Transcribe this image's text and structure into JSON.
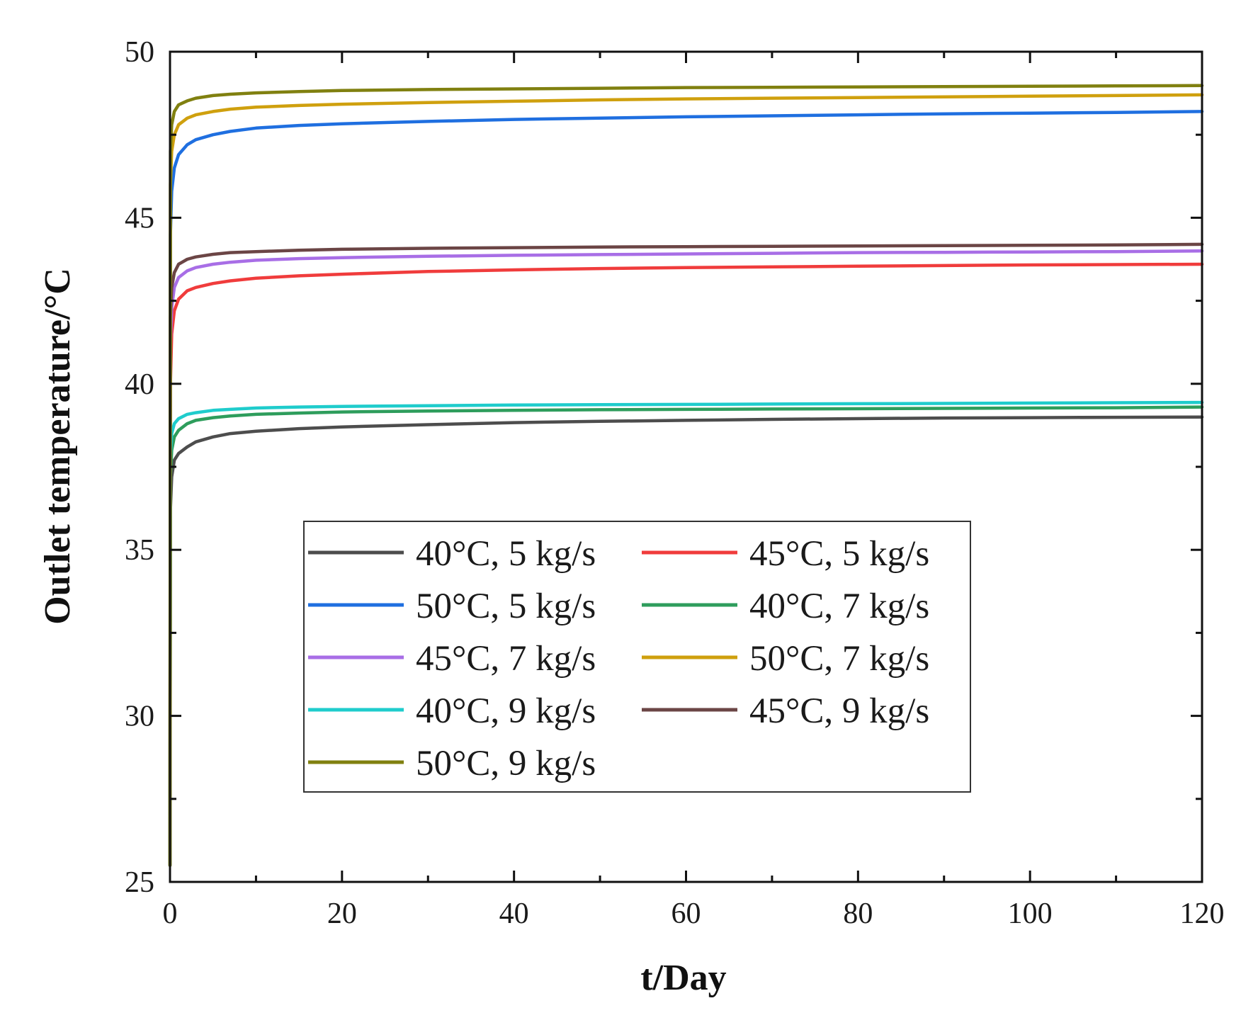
{
  "chart_data": {
    "type": "line",
    "xlabel": "t/Day",
    "ylabel": "Outlet temperature/°C",
    "xlim": [
      0,
      120
    ],
    "ylim": [
      25,
      50
    ],
    "xticks": [
      0,
      20,
      40,
      60,
      80,
      100,
      120
    ],
    "yticks": [
      25,
      30,
      35,
      40,
      45,
      50
    ],
    "grid": false,
    "legend_position": "center-left, inside plot",
    "x": [
      0,
      0.05,
      0.2,
      0.5,
      1,
      2,
      3,
      5,
      7,
      10,
      15,
      20,
      30,
      40,
      50,
      60,
      70,
      80,
      90,
      100,
      110,
      120
    ],
    "series": [
      {
        "name": "40°C, 5 kg/s",
        "color": "#4d4d4d",
        "start": 25.5,
        "values": [
          25.5,
          36.2,
          37.2,
          37.7,
          37.9,
          38.1,
          38.25,
          38.4,
          38.5,
          38.57,
          38.65,
          38.7,
          38.77,
          38.83,
          38.87,
          38.9,
          38.93,
          38.95,
          38.97,
          38.98,
          38.99,
          39.0
        ]
      },
      {
        "name": "45°C, 5 kg/s",
        "color": "#f03c3c",
        "start": 25.5,
        "values": [
          25.5,
          40.0,
          41.5,
          42.2,
          42.55,
          42.8,
          42.9,
          43.02,
          43.1,
          43.18,
          43.25,
          43.3,
          43.38,
          43.43,
          43.47,
          43.5,
          43.52,
          43.54,
          43.56,
          43.58,
          43.59,
          43.6
        ]
      },
      {
        "name": "50°C, 5 kg/s",
        "color": "#1f6fe0",
        "start": 25.5,
        "values": [
          25.5,
          44.5,
          45.8,
          46.5,
          46.9,
          47.2,
          47.35,
          47.5,
          47.6,
          47.7,
          47.78,
          47.83,
          47.9,
          47.96,
          48.0,
          48.04,
          48.07,
          48.1,
          48.13,
          48.15,
          48.17,
          48.2
        ]
      },
      {
        "name": "40°C, 7 kg/s",
        "color": "#2e9d5c",
        "start": 25.5,
        "values": [
          25.5,
          37.2,
          38.0,
          38.4,
          38.6,
          38.8,
          38.9,
          38.98,
          39.03,
          39.08,
          39.12,
          39.15,
          39.18,
          39.2,
          39.22,
          39.23,
          39.24,
          39.25,
          39.26,
          39.27,
          39.28,
          39.3
        ]
      },
      {
        "name": "45°C, 7 kg/s",
        "color": "#a86ee6",
        "start": 25.5,
        "values": [
          25.5,
          41.2,
          42.3,
          42.9,
          43.2,
          43.4,
          43.5,
          43.6,
          43.66,
          43.72,
          43.77,
          43.8,
          43.84,
          43.87,
          43.89,
          43.91,
          43.93,
          43.95,
          43.96,
          43.97,
          43.98,
          44.0
        ]
      },
      {
        "name": "50°C, 7 kg/s",
        "color": "#cfa00e",
        "start": 25.5,
        "values": [
          25.5,
          46.0,
          47.0,
          47.5,
          47.8,
          48.0,
          48.1,
          48.2,
          48.27,
          48.33,
          48.38,
          48.42,
          48.47,
          48.51,
          48.55,
          48.58,
          48.6,
          48.62,
          48.64,
          48.66,
          48.68,
          48.7
        ]
      },
      {
        "name": "40°C, 9 kg/s",
        "color": "#1fcccc",
        "start": 25.5,
        "values": [
          25.5,
          37.8,
          38.5,
          38.8,
          38.95,
          39.08,
          39.13,
          39.2,
          39.23,
          39.27,
          39.3,
          39.32,
          39.34,
          39.36,
          39.37,
          39.38,
          39.39,
          39.4,
          39.41,
          39.42,
          39.43,
          39.44
        ]
      },
      {
        "name": "45°C, 9 kg/s",
        "color": "#6b4545",
        "start": 25.5,
        "values": [
          25.5,
          42.0,
          42.9,
          43.35,
          43.6,
          43.75,
          43.82,
          43.9,
          43.95,
          43.98,
          44.02,
          44.05,
          44.08,
          44.1,
          44.12,
          44.13,
          44.14,
          44.15,
          44.16,
          44.17,
          44.18,
          44.2
        ]
      },
      {
        "name": "50°C, 9 kg/s",
        "color": "#808010",
        "start": 25.5,
        "values": [
          25.5,
          47.0,
          47.8,
          48.2,
          48.4,
          48.52,
          48.6,
          48.68,
          48.72,
          48.76,
          48.8,
          48.83,
          48.86,
          48.88,
          48.9,
          48.92,
          48.93,
          48.94,
          48.95,
          48.96,
          48.97,
          48.98
        ]
      }
    ]
  }
}
